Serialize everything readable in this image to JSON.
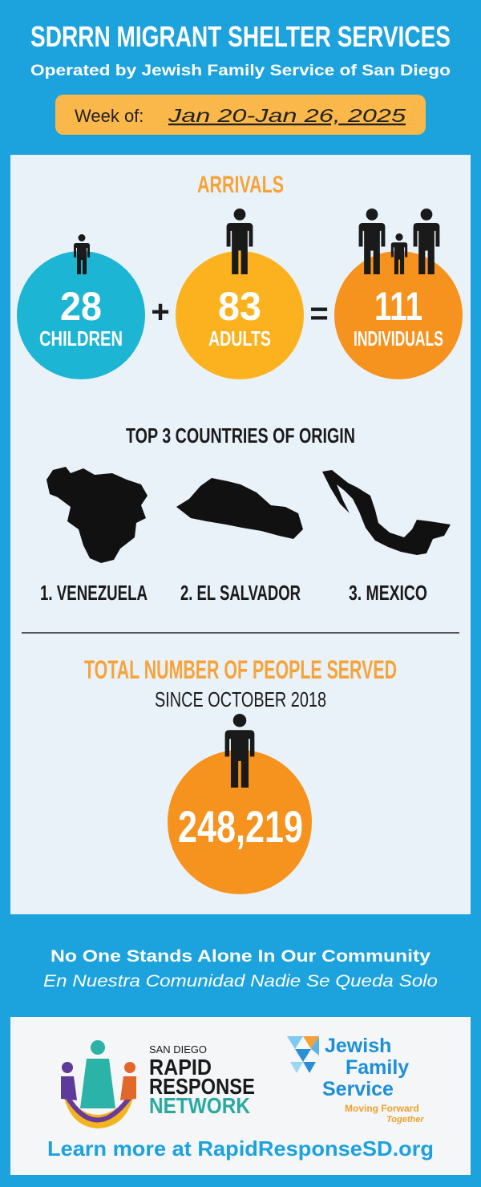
{
  "header": {
    "title": "SDRRN MIGRANT SHELTER SERVICES",
    "subtitle": "Operated by Jewish Family Service of San Diego"
  },
  "week": {
    "label": "Week of:",
    "dates": "Jan 20-Jan 26, 2025"
  },
  "arrivals": {
    "title": "ARRIVALS",
    "children": {
      "value": 28,
      "label": "CHILDREN"
    },
    "plus": "+",
    "adults": {
      "value": 83,
      "label": "ADULTS"
    },
    "equals": "=",
    "individuals": {
      "value": 111,
      "label": "INDIVIDUALS"
    }
  },
  "countries": {
    "title": "TOP 3 COUNTRIES OF ORIGIN",
    "items": [
      "1. VENEZUELA",
      "2. EL SALVADOR",
      "3. MEXICO"
    ]
  },
  "total": {
    "title": "TOTAL NUMBER OF PEOPLE SERVED",
    "subtitle": "SINCE OCTOBER 2018",
    "value": "248,219"
  },
  "footer": {
    "tagline": "No One Stands Alone In Our Community",
    "tagline_es": "En Nuestra Comunidad Nadie Se Queda Solo",
    "rrn_logo": {
      "city": "SAN DIEGO",
      "line1": "RAPID",
      "line2": "RESPONSE",
      "line3": "NETWORK"
    },
    "jfs_logo": {
      "line1": "Jewish",
      "line2": "Family",
      "line3": "Service",
      "motto1": "Moving Forward",
      "motto2": "Together"
    },
    "link": "Learn more at RapidResponseSD.org"
  }
}
